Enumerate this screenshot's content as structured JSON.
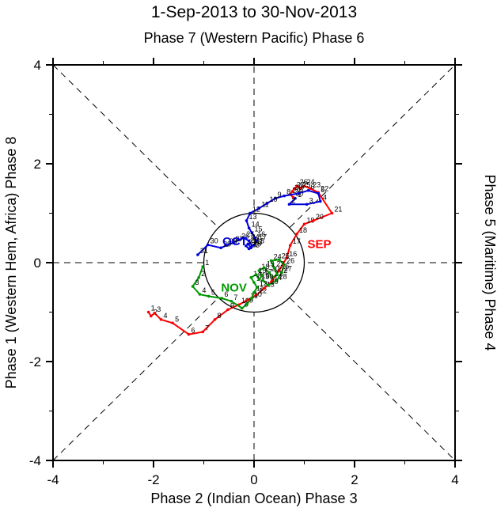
{
  "titles": {
    "main": "1-Sep-2013 to 30-Nov-2013",
    "subtitle": "Phase 7 (Western Pacific) Phase 6"
  },
  "axes": {
    "left_label": "Phase 1 (Western Hem, Africa) Phase 8",
    "right_label": "Phase 5 (Maritime) Phase 4",
    "bottom_label": "Phase 2 (Indian Ocean) Phase 3"
  },
  "chart_data": {
    "type": "line",
    "subtype": "mjo-phase-space-trajectory",
    "title": "1-Sep-2013 to 30-Nov-2013",
    "subtitle": "Phase 7 (Western Pacific) Phase 6",
    "xlabel": "Phase 2 (Indian Ocean) Phase 3",
    "ylabel": "Phase 1 (Western Hem, Africa) Phase 8",
    "xlim": [
      -4,
      4
    ],
    "ylim": [
      -4,
      4
    ],
    "major_ticks": [
      -4,
      -2,
      0,
      2,
      4
    ],
    "minor_ticks": [
      -3,
      -1,
      1,
      3
    ],
    "unit_circle_radius": 1,
    "reference_lines": {
      "diagonals": true,
      "horizontal_zero": true,
      "vertical_zero": true,
      "style": "dashed"
    },
    "grid": false,
    "legend_position": "none",
    "day_label_color": "#000000",
    "series": [
      {
        "name": "SEP",
        "color": "#ff0000",
        "label_pos": [
          1.3,
          0.3
        ],
        "points": [
          [
            -2.1,
            -1.0
          ],
          [
            -2.05,
            -1.08
          ],
          [
            -1.98,
            -1.02
          ],
          [
            -1.85,
            -1.15
          ],
          [
            -1.62,
            -1.22
          ],
          [
            -1.3,
            -1.45
          ],
          [
            -1.02,
            -1.4
          ],
          [
            -0.78,
            -1.15
          ],
          [
            -0.52,
            -0.95
          ],
          [
            -0.3,
            -0.85
          ],
          [
            -0.12,
            -0.75
          ],
          [
            0.05,
            -0.65
          ],
          [
            0.2,
            -0.52
          ],
          [
            0.35,
            -0.38
          ],
          [
            0.5,
            -0.15
          ],
          [
            0.65,
            0.1
          ],
          [
            0.72,
            0.35
          ],
          [
            0.85,
            0.58
          ],
          [
            1.0,
            0.78
          ],
          [
            1.18,
            0.85
          ],
          [
            1.55,
            1.0
          ],
          [
            1.28,
            1.42
          ],
          [
            1.12,
            1.5
          ],
          [
            1.0,
            1.55
          ],
          [
            0.92,
            1.5
          ],
          [
            0.86,
            1.55
          ],
          [
            0.8,
            1.5
          ],
          [
            0.76,
            1.44
          ],
          [
            0.72,
            1.38
          ],
          [
            0.78,
            1.32
          ]
        ]
      },
      {
        "name": "OCT",
        "color": "#0000dd",
        "label_pos": [
          -0.38,
          0.35
        ],
        "points": [
          [
            0.82,
            1.3
          ],
          [
            0.7,
            1.18
          ],
          [
            1.05,
            1.18
          ],
          [
            1.32,
            1.24
          ],
          [
            1.28,
            1.4
          ],
          [
            1.08,
            1.46
          ],
          [
            0.88,
            1.4
          ],
          [
            0.6,
            1.35
          ],
          [
            0.42,
            1.3
          ],
          [
            0.26,
            1.2
          ],
          [
            0.1,
            1.1
          ],
          [
            -0.08,
            1.0
          ],
          [
            -0.15,
            0.85
          ],
          [
            -0.1,
            0.7
          ],
          [
            -0.04,
            0.6
          ],
          [
            0.02,
            0.5
          ],
          [
            0.05,
            0.44
          ],
          [
            0.0,
            0.36
          ],
          [
            -0.06,
            0.3
          ],
          [
            -0.12,
            0.38
          ],
          [
            -0.16,
            0.34
          ],
          [
            -0.1,
            0.28
          ],
          [
            -0.04,
            0.34
          ],
          [
            -0.1,
            0.44
          ],
          [
            -0.2,
            0.5
          ],
          [
            -0.3,
            0.46
          ],
          [
            -0.42,
            0.4
          ],
          [
            -0.54,
            0.35
          ],
          [
            -0.66,
            0.3
          ],
          [
            -0.92,
            0.36
          ],
          [
            -1.12,
            0.16
          ]
        ]
      },
      {
        "name": "NOV",
        "color": "#009900",
        "label_pos": [
          -0.4,
          -0.58
        ],
        "points": [
          [
            -1.02,
            -0.08
          ],
          [
            -1.1,
            -0.3
          ],
          [
            -1.22,
            -0.48
          ],
          [
            -1.08,
            -0.64
          ],
          [
            -0.9,
            -0.68
          ],
          [
            -0.64,
            -0.72
          ],
          [
            -0.45,
            -0.78
          ],
          [
            -0.24,
            -0.92
          ],
          [
            -0.14,
            -0.84
          ],
          [
            -0.05,
            -0.72
          ],
          [
            0.0,
            -0.6
          ],
          [
            0.06,
            -0.5
          ],
          [
            0.0,
            -0.4
          ],
          [
            -0.06,
            -0.3
          ],
          [
            0.04,
            -0.24
          ],
          [
            0.1,
            -0.34
          ],
          [
            0.16,
            -0.26
          ],
          [
            0.1,
            -0.16
          ],
          [
            0.2,
            -0.1
          ],
          [
            0.3,
            -0.2
          ],
          [
            0.36,
            -0.3
          ],
          [
            0.46,
            -0.24
          ],
          [
            0.4,
            -0.1
          ],
          [
            0.34,
            0.04
          ],
          [
            0.5,
            0.06
          ],
          [
            0.6,
            -0.04
          ],
          [
            0.55,
            -0.2
          ],
          [
            0.45,
            -0.36
          ],
          [
            0.28,
            -0.46
          ],
          [
            0.18,
            -0.36
          ]
        ]
      }
    ]
  }
}
